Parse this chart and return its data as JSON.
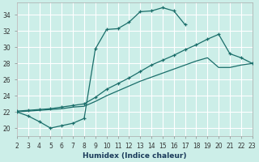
{
  "xlabel": "Humidex (Indice chaleur)",
  "bg_color": "#cceee8",
  "grid_color": "#ffffff",
  "line_color": "#1a6e6a",
  "xlim": [
    2,
    23
  ],
  "ylim": [
    19.0,
    35.5
  ],
  "xticks": [
    2,
    3,
    4,
    5,
    6,
    7,
    8,
    9,
    10,
    11,
    12,
    13,
    14,
    15,
    16,
    17,
    18,
    19,
    20,
    21,
    22,
    23
  ],
  "yticks": [
    20,
    22,
    24,
    26,
    28,
    30,
    32,
    34
  ],
  "series1_x": [
    2,
    3,
    4,
    5,
    6,
    7,
    8,
    9,
    10,
    11,
    12,
    13,
    14,
    15,
    16,
    17
  ],
  "series1_y": [
    22.0,
    21.5,
    20.8,
    20.0,
    20.3,
    20.6,
    21.2,
    29.8,
    32.2,
    32.3,
    33.1,
    34.4,
    34.5,
    34.9,
    34.5,
    32.8
  ],
  "series2_x": [
    2,
    3,
    4,
    5,
    6,
    7,
    8,
    9,
    10,
    11,
    12,
    13,
    14,
    15,
    16,
    17,
    18,
    19,
    20,
    21,
    22,
    23
  ],
  "series2_y": [
    22.1,
    22.2,
    22.3,
    22.4,
    22.6,
    22.8,
    23.0,
    23.8,
    24.8,
    25.5,
    26.2,
    27.0,
    27.8,
    28.4,
    29.0,
    29.7,
    30.3,
    31.0,
    31.6,
    29.2,
    28.7,
    28.0
  ],
  "series3_x": [
    2,
    3,
    4,
    5,
    6,
    7,
    8,
    9,
    10,
    11,
    12,
    13,
    14,
    15,
    16,
    17,
    18,
    19,
    20,
    21,
    22,
    23
  ],
  "series3_y": [
    22.0,
    22.1,
    22.2,
    22.3,
    22.4,
    22.6,
    22.7,
    23.3,
    24.0,
    24.6,
    25.2,
    25.8,
    26.3,
    26.8,
    27.3,
    27.8,
    28.3,
    28.7,
    27.5,
    27.5,
    27.8,
    28.0
  ]
}
